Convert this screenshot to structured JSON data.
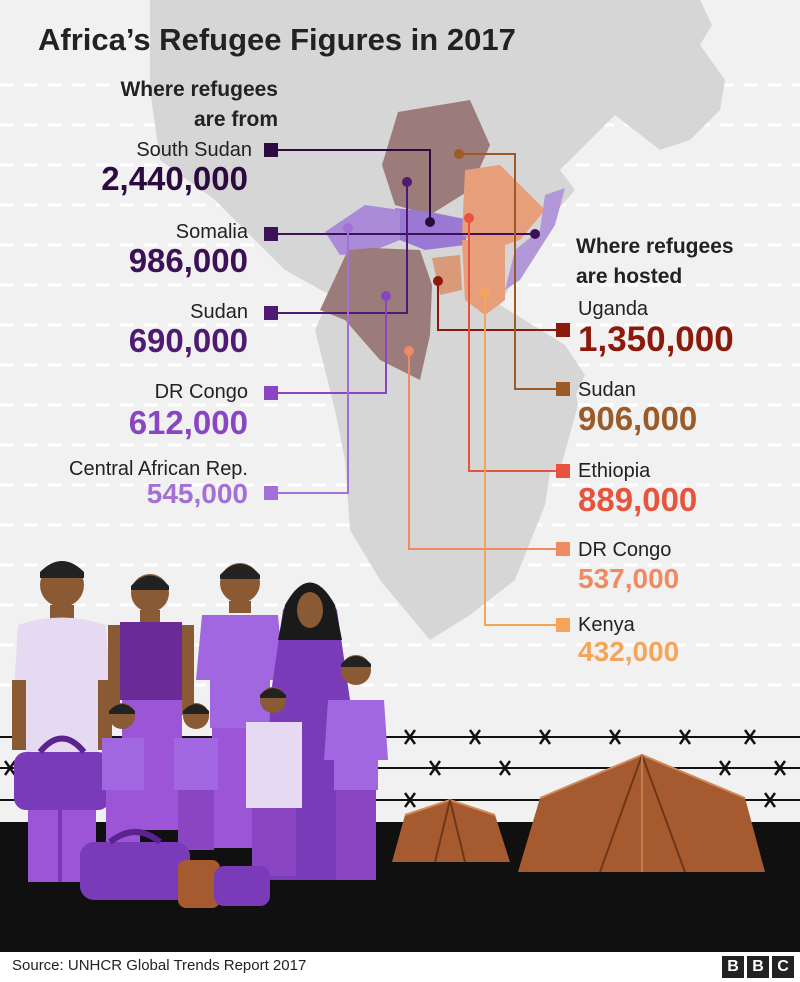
{
  "title": "Africa’s Refugee Figures in 2017",
  "origins_header": [
    "Where refugees",
    "are from"
  ],
  "hosts_header": [
    "Where refugees",
    "are hosted"
  ],
  "origins": [
    {
      "name": "South Sudan",
      "value": "2,440,000",
      "color": "#2b0b3f"
    },
    {
      "name": "Somalia",
      "value": "986,000",
      "color": "#3d1157"
    },
    {
      "name": "Sudan",
      "value": "690,000",
      "color": "#4e1a73"
    },
    {
      "name": "DR Congo",
      "value": "612,000",
      "color": "#8a45c2"
    },
    {
      "name": "Central African Rep.",
      "value": "545,000",
      "color": "#a370d8"
    }
  ],
  "hosts": [
    {
      "name": "Uganda",
      "value": "1,350,000",
      "color": "#8b1a0c"
    },
    {
      "name": "Sudan",
      "value": "906,000",
      "color": "#9c5a28"
    },
    {
      "name": "Ethiopia",
      "value": "889,000",
      "color": "#e8533e"
    },
    {
      "name": "DR Congo",
      "value": "537,000",
      "color": "#ef8a62"
    },
    {
      "name": "Kenya",
      "value": "432,000",
      "color": "#f5a55a"
    }
  ],
  "source": "Source: UNHCR Global Trends Report 2017",
  "logo": [
    "B",
    "B",
    "C"
  ]
}
